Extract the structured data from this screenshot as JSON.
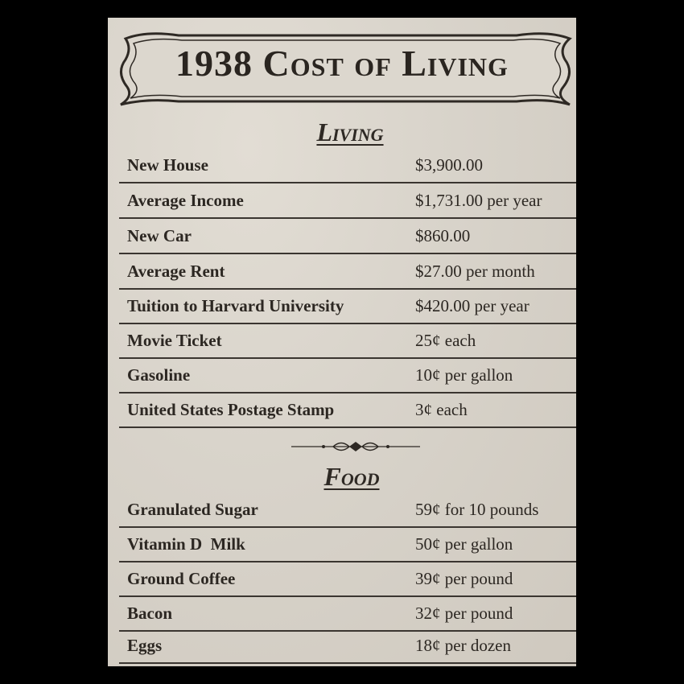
{
  "title": "1938 Cost of Living",
  "sections": {
    "living": {
      "heading": "Living",
      "items": [
        {
          "item": "New House",
          "price": "$3,900.00"
        },
        {
          "item": "Average Income",
          "price": "$1,731.00 per year"
        },
        {
          "item": "New Car",
          "price": "$860.00"
        },
        {
          "item": "Average Rent",
          "price": "$27.00 per month"
        },
        {
          "item": "Tuition to Harvard University",
          "price": "$420.00 per year"
        },
        {
          "item": "Movie Ticket",
          "price": "25¢ each"
        },
        {
          "item": "Gasoline",
          "price": "10¢ per gallon"
        },
        {
          "item": "United States Postage Stamp",
          "price": "3¢ each"
        }
      ]
    },
    "food": {
      "heading": "Food",
      "items": [
        {
          "item": "Granulated Sugar",
          "price": "59¢ for 10 pounds"
        },
        {
          "item": "Vitamin D  Milk",
          "price": "50¢ per gallon"
        },
        {
          "item": "Ground Coffee",
          "price": "39¢ per pound"
        },
        {
          "item": "Bacon",
          "price": "32¢ per pound"
        },
        {
          "item": "Eggs",
          "price": "18¢ per dozen"
        }
      ]
    }
  },
  "colors": {
    "background": "#000000",
    "paper": "#d9d4cb",
    "ink": "#2c2722"
  },
  "icons": {
    "banner": "scroll-banner-frame",
    "divider": "ornamental-flourish"
  }
}
